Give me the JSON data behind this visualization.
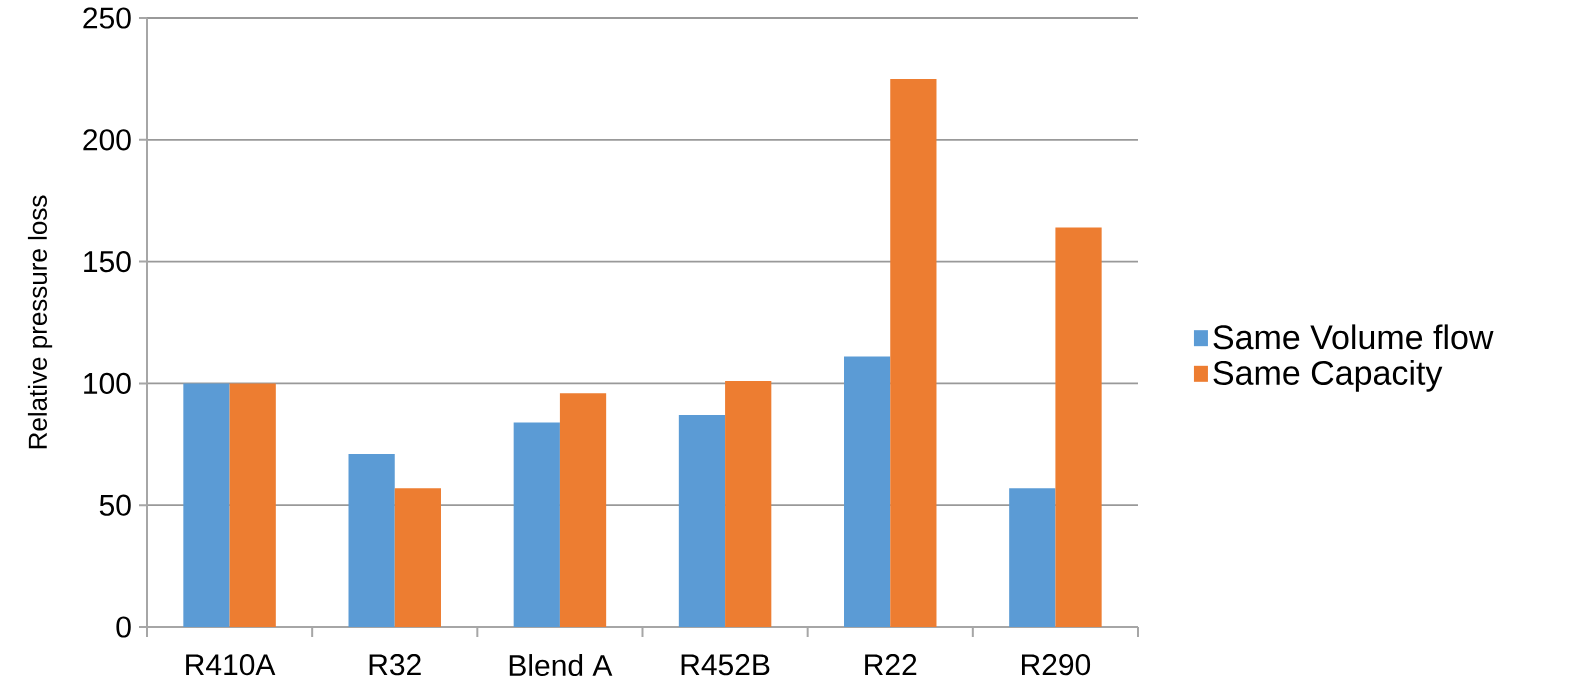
{
  "chart_data": {
    "type": "bar",
    "ylabel": "Relative pressure loss",
    "categories": [
      "R410A",
      "R32",
      "Blend A",
      "R452B",
      "R22",
      "R290"
    ],
    "series": [
      {
        "name": "Same Volume flow",
        "color": "#5b9bd5",
        "values": [
          100,
          71,
          84,
          87,
          111,
          57
        ]
      },
      {
        "name": "Same Capacity",
        "color": "#ed7d31",
        "values": [
          100,
          57,
          96,
          101,
          225,
          164
        ]
      }
    ],
    "ylim": [
      0,
      250
    ],
    "yticks": [
      0,
      50,
      100,
      150,
      200,
      250
    ],
    "grid": "y",
    "legend": "right"
  }
}
